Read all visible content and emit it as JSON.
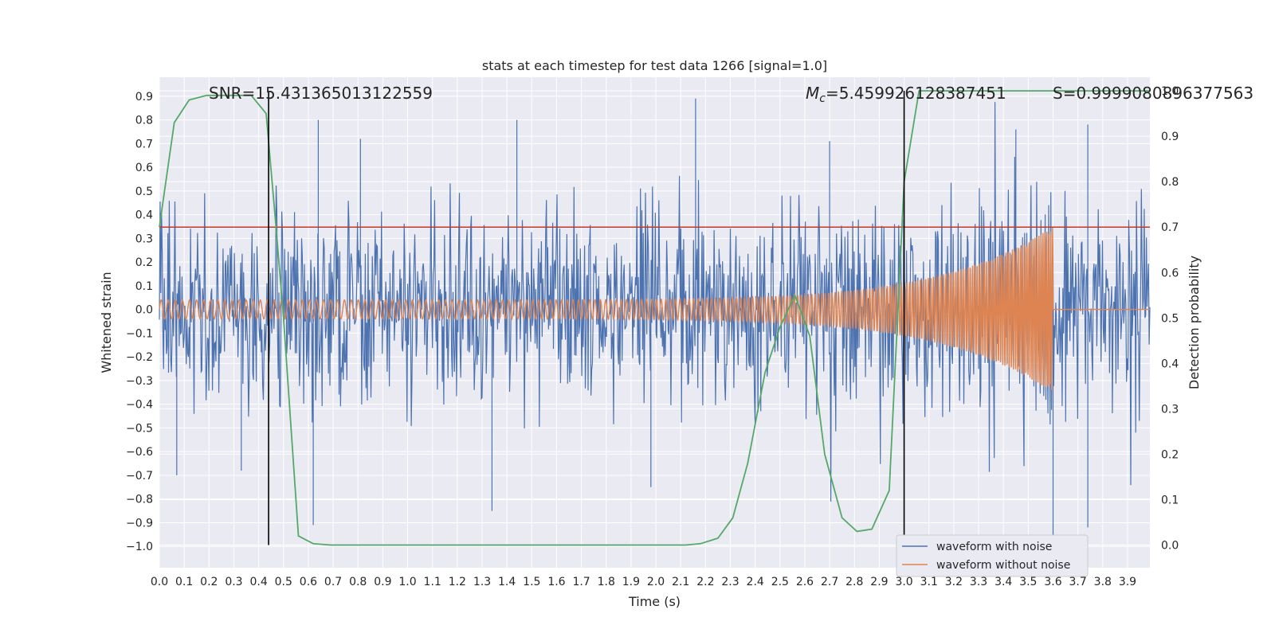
{
  "chart_data": {
    "type": "line",
    "title": "stats at each timestep for test data 1266 [signal=1.0]",
    "xlabel": "Time (s)",
    "ylabel_left": "Whitened strain",
    "ylabel_right": "Detection probability",
    "xlim": [
      0.0,
      3.99
    ],
    "ylim_left": [
      -1.09,
      0.98
    ],
    "ylim_right": [
      -0.05,
      1.03
    ],
    "x_ticks": [
      "0.0",
      "0.1",
      "0.2",
      "0.3",
      "0.4",
      "0.5",
      "0.6",
      "0.7",
      "0.8",
      "0.9",
      "1.0",
      "1.1",
      "1.2",
      "1.3",
      "1.4",
      "1.5",
      "1.6",
      "1.7",
      "1.8",
      "1.9",
      "2.0",
      "2.1",
      "2.2",
      "2.3",
      "2.4",
      "2.5",
      "2.6",
      "2.7",
      "2.8",
      "2.9",
      "3.0",
      "3.1",
      "3.2",
      "3.3",
      "3.4",
      "3.5",
      "3.6",
      "3.7",
      "3.8",
      "3.9"
    ],
    "y_left_ticks": [
      "−1.0",
      "−0.9",
      "−0.8",
      "−0.7",
      "−0.6",
      "−0.5",
      "−0.4",
      "−0.3",
      "−0.2",
      "−0.1",
      "0.0",
      "0.1",
      "0.2",
      "0.3",
      "0.4",
      "0.5",
      "0.6",
      "0.7",
      "0.8",
      "0.9"
    ],
    "y_right_ticks": [
      "0.0",
      "0.1",
      "0.2",
      "0.3",
      "0.4",
      "0.5",
      "0.6",
      "0.7",
      "0.8",
      "0.9",
      "1.0"
    ],
    "threshold": {
      "value": 0.7,
      "color": "#c0392b"
    },
    "vertical_markers": [
      0.44,
      3.0
    ],
    "annotations": {
      "snr": "SNR=15.431365013122559",
      "mc_symbol": "M",
      "mc_subscript": "c",
      "mc_value": "=5.459926128387451",
      "s": "S=0.9999080896377563"
    },
    "series": [
      {
        "name": "waveform with noise",
        "color": "#4c72b0",
        "kind": "noise",
        "amplitude_sd": 0.2,
        "notable_spikes": [
          {
            "x": 0.64,
            "y": 0.8
          },
          {
            "x": 0.81,
            "y": 0.72
          },
          {
            "x": 1.44,
            "y": 0.8
          },
          {
            "x": 2.16,
            "y": 0.89
          },
          {
            "x": 2.7,
            "y": 0.71
          },
          {
            "x": 3.45,
            "y": 0.76
          },
          {
            "x": 3.74,
            "y": 0.78
          },
          {
            "x": 1.34,
            "y": -0.85
          },
          {
            "x": 3.6,
            "y": -0.98
          },
          {
            "x": 3.74,
            "y": -0.92
          },
          {
            "x": 0.62,
            "y": -0.91
          },
          {
            "x": 1.98,
            "y": -0.75
          },
          {
            "x": 0.07,
            "y": -0.7
          },
          {
            "x": 0.33,
            "y": -0.68
          }
        ]
      },
      {
        "name": "waveform without noise",
        "color": "#dd8452",
        "kind": "chirp",
        "start_amplitude": 0.04,
        "peak_amplitude": 0.35,
        "start_freq_hz": 35,
        "end_freq_hz": 130,
        "end_time": 3.6
      },
      {
        "name": "detection probability",
        "color": "#55a868",
        "axis": "right",
        "x": [
          0.0,
          0.06,
          0.12,
          0.19,
          0.25,
          0.32,
          0.37,
          0.43,
          0.47,
          0.5,
          0.56,
          0.62,
          0.69,
          0.8,
          1.0,
          1.2,
          1.4,
          1.6,
          1.8,
          2.0,
          2.12,
          2.18,
          2.25,
          2.31,
          2.37,
          2.44,
          2.5,
          2.56,
          2.62,
          2.68,
          2.75,
          2.81,
          2.87,
          2.94,
          3.0,
          3.06,
          3.12,
          3.2,
          3.4,
          3.6,
          3.8,
          3.99
        ],
        "y": [
          0.7,
          0.93,
          0.98,
          0.99,
          0.99,
          0.99,
          0.99,
          0.95,
          0.7,
          0.5,
          0.02,
          0.003,
          0.0,
          0.0,
          0.0,
          0.0,
          0.0,
          0.0,
          0.0,
          0.0,
          0.0,
          0.003,
          0.015,
          0.06,
          0.18,
          0.38,
          0.48,
          0.55,
          0.46,
          0.2,
          0.06,
          0.03,
          0.035,
          0.12,
          0.8,
          1.0,
          1.0,
          1.0,
          1.0,
          1.0,
          1.0,
          1.0
        ]
      }
    ],
    "legend": [
      "waveform with noise",
      "waveform without noise"
    ],
    "legend_position": "lower-right"
  }
}
